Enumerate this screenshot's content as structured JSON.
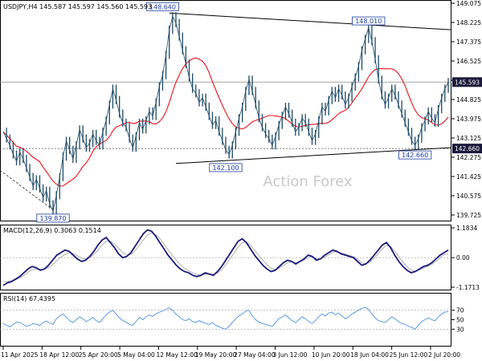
{
  "chart_data": {
    "type": "line",
    "symbol_label": "USDJPY,H4",
    "ohlc_label": "145.587 145.597 145.560 145.593",
    "watermark": "Action Forex",
    "colors": {
      "price": "#1e4a66",
      "ma": "#e8141c",
      "macd": "#1a1a7a",
      "signal": "#b0b0b0",
      "rsi": "#4a90e2",
      "trendline": "#000000",
      "last_price_bg": "#1a1a3a"
    },
    "main": {
      "ylim": [
        139.725,
        149.075
      ],
      "yticks": [
        "149.075",
        "148.225",
        "147.375",
        "146.525",
        "145.675",
        "144.825",
        "143.975",
        "143.125",
        "142.275",
        "141.425",
        "140.575",
        "139.725"
      ],
      "last_price": "145.593",
      "support_line_label": "142.660",
      "support_level": 142.66,
      "annotations": [
        {
          "label": "148.640",
          "value": 148.64
        },
        {
          "label": "148.010",
          "value": 148.01
        },
        {
          "label": "142.100",
          "value": 142.1
        },
        {
          "label": "142.660",
          "value": 142.66
        },
        {
          "label": "139.870",
          "value": 139.87
        }
      ],
      "close": [
        143.4,
        143.1,
        142.8,
        142.4,
        142.1,
        142.5,
        142.2,
        141.8,
        141.4,
        141.0,
        141.3,
        140.9,
        140.5,
        140.8,
        140.2,
        139.9,
        140.6,
        141.4,
        142.3,
        143.0,
        142.6,
        142.2,
        142.8,
        143.5,
        143.1,
        142.7,
        142.9,
        143.3,
        143.0,
        142.8,
        143.4,
        143.9,
        144.6,
        145.3,
        144.8,
        144.2,
        143.8,
        143.6,
        143.1,
        142.7,
        143.2,
        143.8,
        143.5,
        143.9,
        144.3,
        144.1,
        144.7,
        145.4,
        145.9,
        146.8,
        147.9,
        148.5,
        148.2,
        147.6,
        147.0,
        146.4,
        145.8,
        145.3,
        145.1,
        144.7,
        144.9,
        144.5,
        144.1,
        143.7,
        143.9,
        143.4,
        143.0,
        142.6,
        142.4,
        142.8,
        143.4,
        144.0,
        144.5,
        145.2,
        145.7,
        145.2,
        144.6,
        144.0,
        143.6,
        143.3,
        143.1,
        142.8,
        143.2,
        143.7,
        144.1,
        144.5,
        144.2,
        143.8,
        143.4,
        143.6,
        144.0,
        143.8,
        143.4,
        143.0,
        143.3,
        143.9,
        144.5,
        144.3,
        144.8,
        145.2,
        144.9,
        145.3,
        145.0,
        144.6,
        144.9,
        145.4,
        145.8,
        146.3,
        147.0,
        147.5,
        148.0,
        147.4,
        146.6,
        145.7,
        145.0,
        144.6,
        144.9,
        145.3,
        145.0,
        144.6,
        144.2,
        143.8,
        143.4,
        143.0,
        142.8,
        143.1,
        143.6,
        143.9,
        144.3,
        144.0,
        143.8,
        144.4,
        144.9,
        145.3,
        145.59
      ]
    },
    "macd": {
      "label": "MACD(12,26,9) 0.3063 0.1514",
      "ylim": [
        -1.1713,
        1.1834
      ],
      "yticks": [
        "1.1834",
        "0.00",
        "-1.1713"
      ],
      "values": [
        -1.1,
        -1.0,
        -0.95,
        -0.85,
        -0.75,
        -0.6,
        -0.45,
        -0.35,
        -0.4,
        -0.5,
        -0.45,
        -0.3,
        -0.1,
        0.1,
        0.2,
        0.3,
        0.25,
        0.1,
        -0.05,
        -0.15,
        -0.1,
        0.05,
        0.25,
        0.5,
        0.7,
        0.8,
        0.6,
        0.4,
        0.15,
        0.0,
        0.05,
        0.2,
        0.45,
        0.7,
        0.95,
        1.1,
        1.05,
        0.85,
        0.6,
        0.35,
        0.1,
        -0.1,
        -0.3,
        -0.45,
        -0.55,
        -0.6,
        -0.7,
        -0.75,
        -0.7,
        -0.6,
        -0.65,
        -0.7,
        -0.55,
        -0.35,
        -0.1,
        0.15,
        0.4,
        0.65,
        0.75,
        0.6,
        0.35,
        0.1,
        -0.1,
        -0.3,
        -0.45,
        -0.55,
        -0.5,
        -0.35,
        -0.2,
        -0.1,
        -0.15,
        -0.25,
        -0.15,
        -0.05,
        0.1,
        0.05,
        -0.1,
        -0.05,
        0.1,
        0.2,
        0.3,
        0.25,
        0.15,
        0.1,
        0.05,
        0.0,
        -0.15,
        -0.3,
        -0.25,
        -0.1,
        0.1,
        0.3,
        0.5,
        0.6,
        0.4,
        0.1,
        -0.15,
        -0.35,
        -0.5,
        -0.6,
        -0.55,
        -0.45,
        -0.35,
        -0.3,
        -0.2,
        -0.05,
        0.1,
        0.2,
        0.3
      ],
      "signal": [
        -0.95,
        -0.95,
        -0.92,
        -0.88,
        -0.8,
        -0.7,
        -0.58,
        -0.48,
        -0.45,
        -0.46,
        -0.46,
        -0.4,
        -0.28,
        -0.12,
        0.02,
        0.14,
        0.2,
        0.17,
        0.08,
        -0.02,
        -0.05,
        0.0,
        0.12,
        0.3,
        0.5,
        0.65,
        0.65,
        0.55,
        0.38,
        0.2,
        0.1,
        0.13,
        0.28,
        0.48,
        0.7,
        0.9,
        0.98,
        0.92,
        0.76,
        0.55,
        0.32,
        0.1,
        -0.1,
        -0.28,
        -0.42,
        -0.52,
        -0.6,
        -0.67,
        -0.69,
        -0.65,
        -0.64,
        -0.66,
        -0.61,
        -0.48,
        -0.28,
        -0.05,
        0.18,
        0.42,
        0.6,
        0.62,
        0.5,
        0.3,
        0.1,
        -0.1,
        -0.28,
        -0.42,
        -0.47,
        -0.42,
        -0.31,
        -0.2,
        -0.17,
        -0.2,
        -0.17,
        -0.1,
        0.0,
        0.03,
        -0.04,
        -0.05,
        0.03,
        0.12,
        0.22,
        0.24,
        0.19,
        0.14,
        0.09,
        0.04,
        -0.06,
        -0.2,
        -0.24,
        -0.17,
        -0.02,
        0.16,
        0.35,
        0.49,
        0.45,
        0.26,
        0.04,
        -0.18,
        -0.36,
        -0.5,
        -0.53,
        -0.49,
        -0.41,
        -0.35,
        -0.27,
        -0.14,
        0.0,
        0.12,
        0.15
      ]
    },
    "rsi": {
      "label": "RSI(14) 67.4395",
      "ylim": [
        0,
        100
      ],
      "yticks": [
        "70",
        "50",
        "30"
      ],
      "values": [
        42,
        38,
        35,
        40,
        45,
        44,
        40,
        36,
        38,
        42,
        40,
        38,
        44,
        47,
        43,
        40,
        52,
        58,
        62,
        55,
        48,
        44,
        50,
        56,
        52,
        46,
        50,
        55,
        48,
        44,
        52,
        60,
        66,
        70,
        62,
        54,
        48,
        45,
        40,
        38,
        46,
        55,
        50,
        56,
        60,
        57,
        62,
        66,
        68,
        72,
        75,
        70,
        62,
        56,
        50,
        48,
        52,
        46,
        44,
        48,
        45,
        42,
        40,
        44,
        38,
        35,
        32,
        30,
        36,
        44,
        52,
        58,
        62,
        68,
        70,
        58,
        50,
        45,
        42,
        40,
        38,
        36,
        44,
        52,
        56,
        60,
        54,
        48,
        44,
        50,
        56,
        52,
        46,
        42,
        48,
        56,
        62,
        58,
        64,
        66,
        60,
        64,
        58,
        52,
        56,
        62,
        66,
        70,
        74,
        76,
        72,
        62,
        54,
        48,
        46,
        44,
        50,
        56,
        52,
        46,
        42,
        40,
        36,
        34,
        30,
        38,
        46,
        50,
        54,
        50,
        48,
        56,
        62,
        66,
        67
      ]
    },
    "x_ticks": [
      "11 Apr 2025",
      "18 Apr 12:00",
      "25 Apr 20:00",
      "5 May 04:00",
      "12 May 12:00",
      "19 May 20:00",
      "27 May 04:00",
      "3 Jun 12:00",
      "10 Jun 20:00",
      "18 Jun 04:00",
      "25 Jun 12:00",
      "2 Jul 20:00"
    ]
  }
}
